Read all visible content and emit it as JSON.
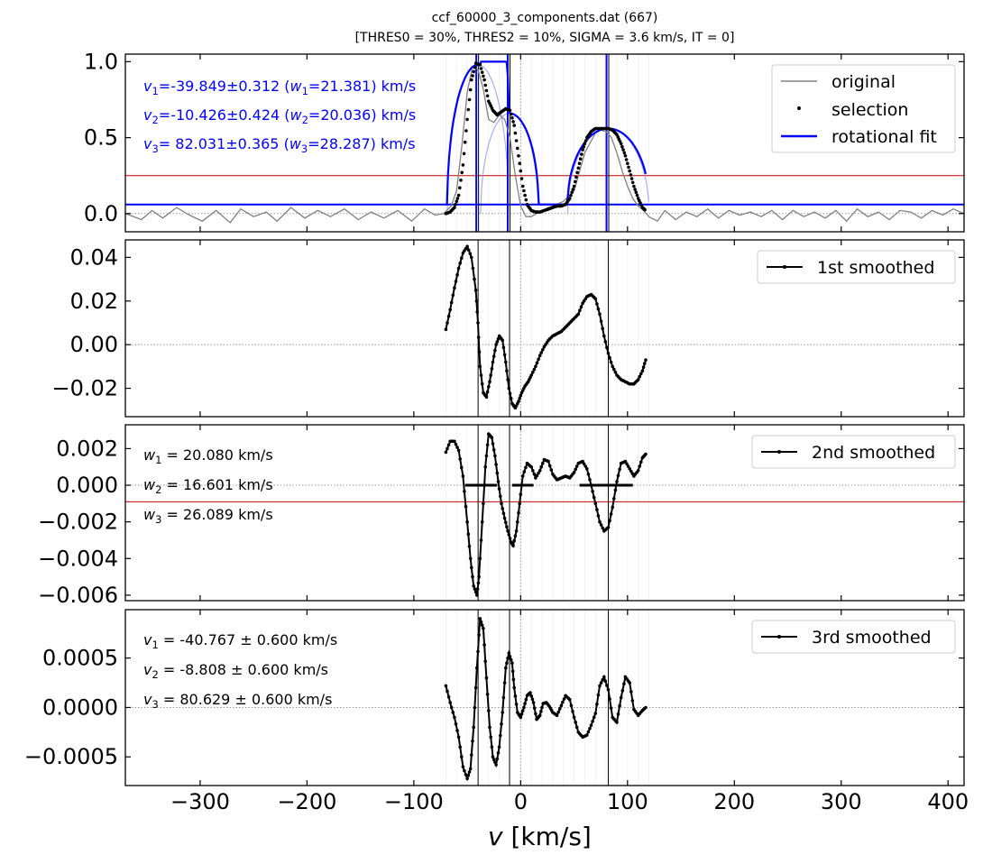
{
  "header": {
    "title": "ccf_60000_3_components.dat (667)",
    "subtitle": "[THRES0 = 30%, THRES2 = 10%, SIGMA =  3.6 km/s, IT = 0]"
  },
  "colors": {
    "fit": "#0000ff",
    "original": "#808080",
    "selection": "#000000",
    "hline": "#cc0000",
    "annot": "#0000ff"
  },
  "chart_data": [
    {
      "type": "line",
      "panel": "ccf",
      "xlim": [
        -370,
        415
      ],
      "ylim": [
        -0.12,
        1.05
      ],
      "xticks": [
        -300,
        -200,
        -100,
        0,
        100,
        200,
        300,
        400
      ],
      "yticks": [
        0.0,
        0.5,
        1.0
      ],
      "ytick_labels": [
        "0.0",
        "0.5",
        "1.0"
      ],
      "threshold_line": 0.25,
      "legend": {
        "position": "top-right",
        "entries": [
          "original",
          "selection",
          "rotational fit"
        ]
      },
      "annotations": [
        {
          "v_label": "v",
          "v_sub": "1",
          "v_text": "=-39.849±0.312 (",
          "w_label": "w",
          "w_sub": "1",
          "w_text": "=21.381) km/s"
        },
        {
          "v_label": "v",
          "v_sub": "2",
          "v_text": "=-10.426±0.424 (",
          "w_label": "w",
          "w_sub": "2",
          "w_text": "=20.036) km/s"
        },
        {
          "v_label": "v",
          "v_sub": "3",
          "v_text": "= 82.031±0.365 (",
          "w_label": "w",
          "w_sub": "3",
          "w_text": "=28.287) km/s"
        }
      ],
      "components": [
        {
          "v": -39.849,
          "width": 21.381,
          "amp": 0.98
        },
        {
          "v": -10.426,
          "width": 20.036,
          "amp": 0.66
        },
        {
          "v": 82.031,
          "width": 28.287,
          "amp": 0.56
        }
      ],
      "fit_baseline": 0.06,
      "fit_range": [
        -70,
        117
      ],
      "series": [
        {
          "name": "original",
          "x": [
            -370,
            -355,
            -345,
            -335,
            -322,
            -310,
            -298,
            -285,
            -272,
            -262,
            -250,
            -238,
            -228,
            -215,
            -202,
            -190,
            -178,
            -165,
            -152,
            -140,
            -128,
            -115,
            -102,
            -90,
            -80,
            -72,
            -65,
            -60,
            -55,
            -50,
            -45,
            -40,
            -35,
            -30,
            -25,
            -20,
            -15,
            -10,
            -5,
            0,
            5,
            10,
            15,
            20,
            30,
            40,
            50,
            60,
            70,
            75,
            80,
            85,
            90,
            95,
            100,
            105,
            110,
            115,
            120,
            128,
            135,
            145,
            155,
            165,
            175,
            185,
            195,
            205,
            215,
            225,
            235,
            245,
            255,
            265,
            275,
            285,
            295,
            305,
            315,
            325,
            335,
            345,
            355,
            365,
            375,
            385,
            395,
            405,
            415
          ],
          "y": [
            0.0,
            -0.04,
            0.02,
            -0.03,
            0.04,
            -0.01,
            -0.05,
            0.02,
            -0.06,
            0.03,
            -0.02,
            0.01,
            -0.05,
            0.04,
            -0.03,
            0.02,
            -0.02,
            0.03,
            -0.04,
            0.01,
            -0.03,
            0.02,
            -0.05,
            0.03,
            -0.01,
            0.0,
            0.05,
            0.15,
            0.45,
            0.8,
            0.97,
            0.95,
            0.82,
            0.62,
            0.6,
            0.65,
            0.62,
            0.5,
            0.25,
            0.05,
            -0.02,
            -0.02,
            0.0,
            0.02,
            0.05,
            0.08,
            0.15,
            0.4,
            0.53,
            0.55,
            0.54,
            0.5,
            0.4,
            0.28,
            0.18,
            0.1,
            0.05,
            0.02,
            -0.02,
            -0.05,
            0.02,
            -0.04,
            0.01,
            -0.02,
            0.03,
            -0.03,
            0.02,
            -0.01,
            0.01,
            -0.02,
            0.02,
            -0.04,
            0.02,
            -0.02,
            0.01,
            -0.03,
            0.02,
            -0.05,
            0.03,
            -0.02,
            0.01,
            -0.04,
            0.02,
            0.01,
            -0.03,
            0.02,
            -0.01,
            0.03,
            0.0
          ]
        },
        {
          "name": "selection",
          "x": [
            -70,
            -66,
            -62,
            -58,
            -54,
            -50,
            -46,
            -42,
            -38,
            -34,
            -30,
            -26,
            -22,
            -18,
            -14,
            -10,
            -6,
            -2,
            2,
            6,
            10,
            14,
            18,
            22,
            26,
            30,
            34,
            38,
            42,
            46,
            50,
            54,
            58,
            62,
            66,
            70,
            74,
            78,
            82,
            86,
            90,
            94,
            98,
            102,
            106,
            110,
            114,
            117
          ],
          "y": [
            0.0,
            0.01,
            0.04,
            0.12,
            0.32,
            0.62,
            0.88,
            0.99,
            0.98,
            0.88,
            0.74,
            0.68,
            0.65,
            0.67,
            0.69,
            0.68,
            0.58,
            0.38,
            0.18,
            0.06,
            0.02,
            0.01,
            0.01,
            0.02,
            0.03,
            0.04,
            0.05,
            0.05,
            0.06,
            0.1,
            0.18,
            0.3,
            0.42,
            0.5,
            0.54,
            0.56,
            0.56,
            0.56,
            0.56,
            0.55,
            0.52,
            0.46,
            0.38,
            0.28,
            0.18,
            0.1,
            0.04,
            0.02
          ]
        }
      ]
    },
    {
      "type": "line",
      "panel": "first-derivative",
      "xlim": [
        -370,
        415
      ],
      "ylim": [
        -0.033,
        0.048
      ],
      "yticks": [
        -0.02,
        0.0,
        0.02,
        0.04
      ],
      "ytick_labels": [
        "−0.02",
        "0.00",
        "0.02",
        "0.04"
      ],
      "legend": {
        "position": "top-right",
        "entries": [
          "1st smoothed"
        ]
      },
      "series": [
        {
          "name": "1st smoothed",
          "x": [
            -70,
            -66,
            -62,
            -58,
            -54,
            -50,
            -46,
            -42,
            -40,
            -38,
            -35,
            -32,
            -29,
            -26,
            -23,
            -20,
            -17,
            -14,
            -11,
            -8,
            -5,
            -2,
            1,
            4,
            7,
            10,
            14,
            18,
            22,
            26,
            30,
            34,
            38,
            42,
            46,
            50,
            54,
            58,
            62,
            66,
            70,
            74,
            78,
            82,
            86,
            90,
            94,
            98,
            102,
            106,
            110,
            114,
            117
          ],
          "y": [
            0.007,
            0.016,
            0.026,
            0.035,
            0.042,
            0.045,
            0.04,
            0.025,
            0.01,
            -0.01,
            -0.022,
            -0.024,
            -0.017,
            -0.008,
            0.0,
            0.004,
            0.002,
            -0.008,
            -0.02,
            -0.027,
            -0.029,
            -0.026,
            -0.022,
            -0.019,
            -0.017,
            -0.014,
            -0.01,
            -0.005,
            -0.001,
            0.002,
            0.004,
            0.005,
            0.006,
            0.008,
            0.01,
            0.012,
            0.014,
            0.019,
            0.022,
            0.023,
            0.021,
            0.014,
            0.004,
            -0.004,
            -0.01,
            -0.014,
            -0.016,
            -0.017,
            -0.018,
            -0.018,
            -0.016,
            -0.012,
            -0.007
          ]
        }
      ]
    },
    {
      "type": "line",
      "panel": "second-derivative",
      "xlim": [
        -370,
        415
      ],
      "ylim": [
        -0.0063,
        0.0033
      ],
      "yticks": [
        -0.006,
        -0.004,
        -0.002,
        0.0,
        0.002
      ],
      "ytick_labels": [
        "−0.006",
        "−0.004",
        "−0.002",
        "0.000",
        "0.002"
      ],
      "threshold_line": -0.0009,
      "annotations": [
        {
          "label": "w",
          "sub": "1",
          "text": " =  20.080 km/s"
        },
        {
          "label": "w",
          "sub": "2",
          "text": " =  16.601 km/s"
        },
        {
          "label": "w",
          "sub": "3",
          "text": " =  26.089 km/s"
        }
      ],
      "legend": {
        "position": "top-right",
        "entries": [
          "2nd smoothed"
        ]
      },
      "series": [
        {
          "name": "2nd smoothed",
          "x": [
            -70,
            -66,
            -62,
            -58,
            -54,
            -50,
            -47,
            -44,
            -41,
            -39,
            -36,
            -33,
            -30,
            -27,
            -24,
            -21,
            -18,
            -15,
            -12,
            -9,
            -7,
            -4,
            -1,
            2,
            6,
            10,
            14,
            18,
            22,
            26,
            30,
            34,
            38,
            42,
            46,
            50,
            54,
            58,
            62,
            66,
            70,
            74,
            78,
            82,
            86,
            90,
            94,
            98,
            102,
            106,
            110,
            114,
            117
          ],
          "y": [
            0.0018,
            0.0024,
            0.0024,
            0.0019,
            0.0005,
            -0.002,
            -0.004,
            -0.0055,
            -0.006,
            -0.005,
            -0.002,
            0.001,
            0.0028,
            0.0026,
            0.0016,
            0.0002,
            -0.001,
            -0.0018,
            -0.0025,
            -0.0031,
            -0.0033,
            -0.0025,
            -0.001,
            0.0005,
            0.0012,
            0.001,
            0.0004,
            0.0008,
            0.0014,
            0.0013,
            0.0006,
            0.0003,
            0.0004,
            0.0005,
            0.0004,
            0.0007,
            0.0012,
            0.0013,
            0.0009,
            0.0,
            -0.001,
            -0.002,
            -0.0025,
            -0.0023,
            -0.0012,
            0.0002,
            0.0012,
            0.0013,
            0.0009,
            0.0005,
            0.0008,
            0.0015,
            0.0017
          ]
        }
      ]
    },
    {
      "type": "line",
      "panel": "third-derivative",
      "xlim": [
        -370,
        415
      ],
      "ylim": [
        -0.00079,
        0.00099
      ],
      "yticks": [
        -0.0005,
        0.0,
        0.0005
      ],
      "ytick_labels": [
        "−0.0005",
        "0.0000",
        "0.0005"
      ],
      "annotations": [
        {
          "label": "v",
          "sub": "1",
          "text": " = -40.767 ± 0.600 km/s"
        },
        {
          "label": "v",
          "sub": "2",
          "text": " =  -8.808 ± 0.600 km/s"
        },
        {
          "label": "v",
          "sub": "3",
          "text": " =  80.629 ± 0.600 km/s"
        }
      ],
      "legend": {
        "position": "top-right",
        "entries": [
          "3rd smoothed"
        ]
      },
      "xlabel_var": "v",
      "xlabel_unit": " [km/s]",
      "xtick_labels": [
        "−300",
        "−200",
        "−100",
        "0",
        "100",
        "200",
        "300",
        "400"
      ],
      "series": [
        {
          "name": "3rd smoothed",
          "x": [
            -70,
            -66,
            -62,
            -58,
            -54,
            -50,
            -47,
            -44,
            -41,
            -38,
            -35,
            -32,
            -29,
            -26,
            -23,
            -20,
            -17,
            -14,
            -11,
            -8,
            -6,
            -3,
            0,
            3,
            6,
            9,
            12,
            15,
            18,
            21,
            24,
            27,
            30,
            34,
            38,
            42,
            46,
            50,
            54,
            58,
            62,
            66,
            70,
            74,
            78,
            82,
            86,
            90,
            94,
            98,
            102,
            106,
            110,
            114,
            117
          ],
          "y": [
            0.00022,
            5e-05,
            -0.0001,
            -0.0003,
            -0.0006,
            -0.00072,
            -0.00062,
            -0.0002,
            0.0004,
            0.0009,
            0.0008,
            0.0003,
            -0.0002,
            -0.0005,
            -0.00058,
            -0.0004,
            -5e-05,
            0.0004,
            0.00055,
            0.00045,
            0.0002,
            -5e-05,
            -0.0001,
            0.0,
            0.00012,
            0.00015,
            5e-05,
            -0.00012,
            -8e-05,
            4e-05,
            5e-05,
            1e-05,
            -5e-05,
            -8e-05,
            2e-05,
            0.00012,
            8e-05,
            -0.0001,
            -0.00025,
            -0.0003,
            -0.00028,
            -0.00018,
            -6e-05,
            0.00022,
            0.00031,
            0.00018,
            -0.0001,
            -0.00015,
            0.0001,
            0.00031,
            0.00025,
            -2e-05,
            -8e-05,
            -3e-05,
            0.0
          ]
        }
      ]
    }
  ]
}
